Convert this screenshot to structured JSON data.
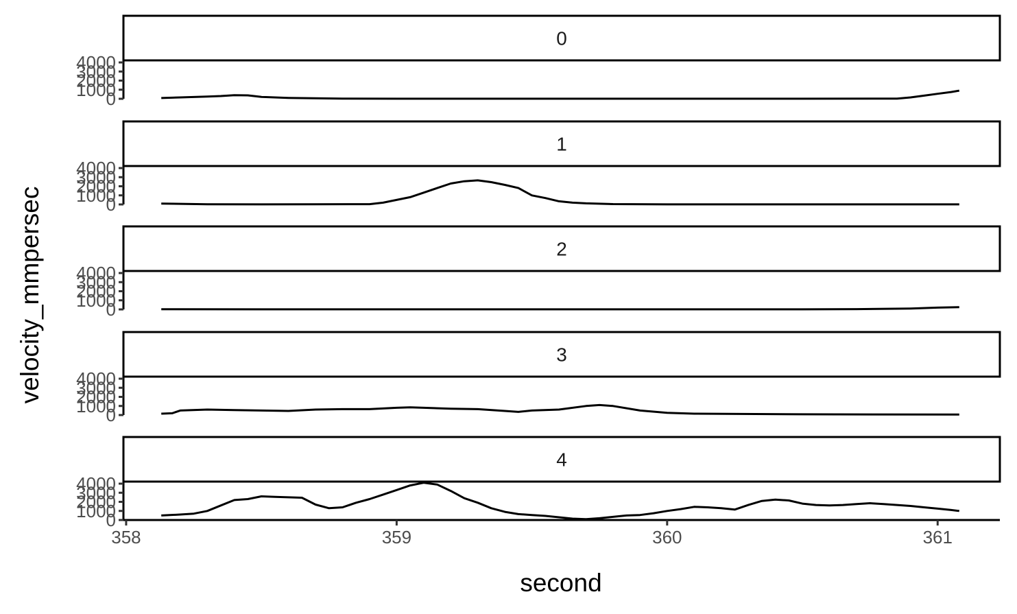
{
  "chart_data": {
    "type": "line",
    "xlabel": "second",
    "ylabel": "velocity_mmpersec",
    "xlim": [
      357.99,
      361.23
    ],
    "ylim": [
      0,
      4000
    ],
    "x_ticks": [
      358,
      359,
      360,
      361
    ],
    "x_tick_labels": [
      "358",
      "359",
      "360",
      "361"
    ],
    "y_ticks": [
      0,
      1000,
      2000,
      3000,
      4000
    ],
    "y_tick_labels": [
      "0",
      "1000",
      "2000",
      "3000",
      "4000"
    ],
    "grid": false,
    "line_color": "#000000",
    "panels": [
      {
        "label": "0",
        "x": [
          358.13,
          358.2,
          358.3,
          358.35,
          358.4,
          358.45,
          358.5,
          358.6,
          358.7,
          358.8,
          359.0,
          359.5,
          360.0,
          360.5,
          360.85,
          360.9,
          360.95,
          361.0,
          361.05,
          361.08
        ],
        "y": [
          80,
          150,
          250,
          300,
          400,
          380,
          200,
          100,
          50,
          20,
          10,
          10,
          10,
          10,
          20,
          150,
          350,
          550,
          750,
          900
        ]
      },
      {
        "label": "1",
        "x": [
          358.13,
          358.3,
          358.5,
          358.7,
          358.9,
          358.95,
          359.0,
          359.05,
          359.1,
          359.15,
          359.2,
          359.25,
          359.3,
          359.35,
          359.4,
          359.45,
          359.5,
          359.55,
          359.6,
          359.65,
          359.7,
          359.8,
          360.0,
          360.5,
          361.08
        ],
        "y": [
          100,
          20,
          10,
          20,
          30,
          200,
          500,
          800,
          1300,
          1800,
          2300,
          2550,
          2650,
          2450,
          2150,
          1800,
          1000,
          700,
          350,
          200,
          120,
          40,
          10,
          10,
          10
        ]
      },
      {
        "label": "2",
        "x": [
          358.13,
          358.5,
          359.0,
          359.5,
          360.0,
          360.5,
          360.7,
          360.9,
          361.0,
          361.08
        ],
        "y": [
          20,
          5,
          5,
          5,
          5,
          10,
          30,
          100,
          200,
          250
        ]
      },
      {
        "label": "3",
        "x": [
          358.13,
          358.17,
          358.2,
          358.3,
          358.4,
          358.5,
          358.6,
          358.7,
          358.8,
          358.9,
          359.0,
          359.05,
          359.1,
          359.2,
          359.3,
          359.4,
          359.45,
          359.5,
          359.6,
          359.7,
          359.75,
          359.8,
          359.9,
          360.0,
          360.1,
          360.5,
          361.08
        ],
        "y": [
          150,
          200,
          500,
          600,
          550,
          500,
          450,
          600,
          650,
          650,
          800,
          850,
          800,
          700,
          650,
          450,
          350,
          500,
          600,
          1000,
          1100,
          1000,
          500,
          250,
          150,
          80,
          50
        ]
      },
      {
        "label": "4",
        "x": [
          358.13,
          358.2,
          358.25,
          358.3,
          358.35,
          358.4,
          358.45,
          358.5,
          358.55,
          358.6,
          358.65,
          358.7,
          358.75,
          358.8,
          358.85,
          358.9,
          358.95,
          359.0,
          359.05,
          359.1,
          359.15,
          359.2,
          359.25,
          359.3,
          359.35,
          359.4,
          359.45,
          359.5,
          359.55,
          359.6,
          359.65,
          359.7,
          359.75,
          359.8,
          359.85,
          359.9,
          359.95,
          360.0,
          360.05,
          360.1,
          360.15,
          360.2,
          360.25,
          360.3,
          360.35,
          360.4,
          360.45,
          360.5,
          360.55,
          360.6,
          360.65,
          360.7,
          360.75,
          360.8,
          360.85,
          360.9,
          360.95,
          361.0,
          361.05,
          361.08
        ],
        "y": [
          500,
          600,
          700,
          1000,
          1600,
          2200,
          2300,
          2600,
          2550,
          2500,
          2450,
          1700,
          1300,
          1400,
          1900,
          2300,
          2800,
          3300,
          3800,
          4100,
          3900,
          3200,
          2400,
          1900,
          1300,
          900,
          650,
          550,
          450,
          300,
          150,
          100,
          200,
          350,
          500,
          550,
          750,
          1000,
          1200,
          1450,
          1400,
          1300,
          1150,
          1650,
          2100,
          2250,
          2150,
          1800,
          1650,
          1600,
          1650,
          1750,
          1850,
          1750,
          1650,
          1550,
          1400,
          1250,
          1100,
          1000
        ]
      }
    ]
  }
}
